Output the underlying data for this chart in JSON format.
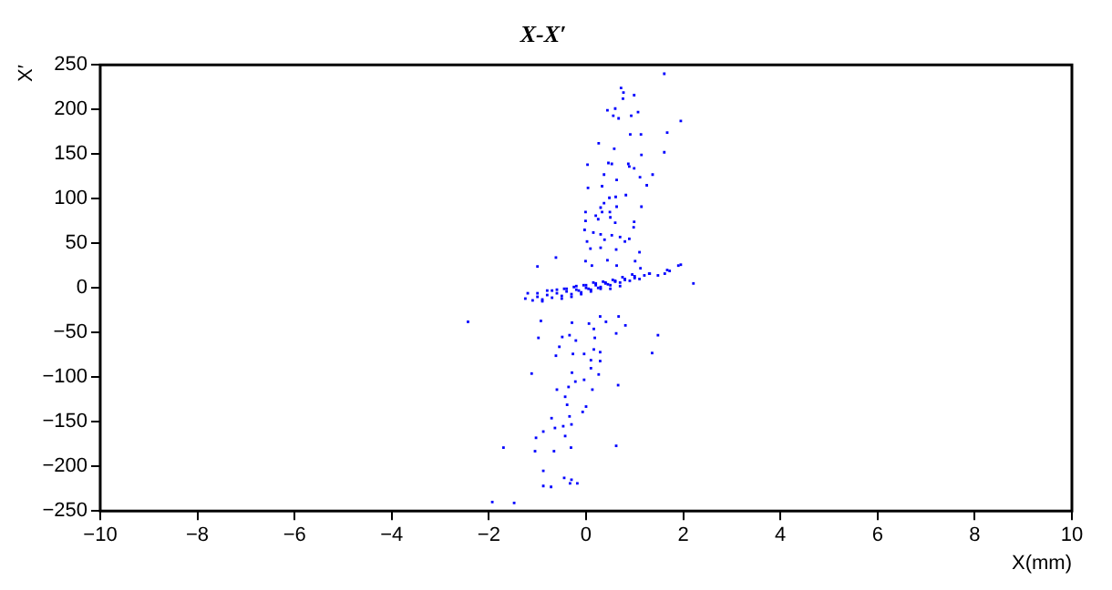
{
  "chart_data": {
    "type": "scatter",
    "title": "X-X′",
    "xlabel": "X(mm)",
    "ylabel": "X′",
    "xlim": [
      -10,
      10
    ],
    "ylim": [
      -250,
      250
    ],
    "xticks": [
      -10,
      -8,
      -6,
      -4,
      -2,
      0,
      2,
      4,
      6,
      8,
      10
    ],
    "yticks": [
      -250,
      -200,
      -150,
      -100,
      -50,
      0,
      50,
      100,
      150,
      200,
      250
    ],
    "grid": false,
    "legend": false,
    "marker": "square",
    "series": [
      {
        "color": "#0000ff",
        "x": [
          1.61,
          0.72,
          0.77,
          0.99,
          0.76,
          0.6,
          0.44,
          0.67,
          0.56,
          1.07,
          0.93,
          1.95,
          1.67,
          0.91,
          1.13,
          0.26,
          0.58,
          1.61,
          1.14,
          0.03,
          0.46,
          0.53,
          0.87,
          0.89,
          0.99,
          0.37,
          1.37,
          1.11,
          0.63,
          0.33,
          1.25,
          0.04,
          0.82,
          0.48,
          0.61,
          0.37,
          0.3,
          0.63,
          1.14,
          -0.01,
          0.33,
          0.49,
          0.2,
          0.25,
          0.5,
          0.6,
          0.99,
          -0.01,
          -0.03,
          0.15,
          0.3,
          0.53,
          0.7,
          0.98,
          0.02,
          0.38,
          0.8,
          0.89,
          0.09,
          0.3,
          0.62,
          1.1,
          -0.62,
          -0.01,
          0.44,
          -1.0,
          0.12,
          0.63,
          1.01,
          1.9,
          1.12,
          1.31,
          1.67,
          2.21,
          1.95,
          1.72,
          1.62,
          1.48,
          -2.43,
          -1.25,
          -1.1,
          -1.0,
          -0.9,
          -0.8,
          -0.7,
          -0.6,
          -0.5,
          -0.4,
          -0.3,
          -0.2,
          -0.1,
          0.0,
          0.1,
          0.2,
          0.3,
          0.4,
          0.5,
          0.6,
          0.7,
          0.8,
          0.9,
          1.0,
          1.1,
          1.2,
          1.3,
          -1.2,
          -1.0,
          -0.8,
          -0.6,
          -0.4,
          -0.2,
          0.0,
          0.2,
          0.4,
          0.6,
          0.8,
          1.0,
          -0.9,
          -0.5,
          -0.3,
          -0.1,
          0.1,
          0.3,
          0.5,
          0.7,
          -0.7,
          -0.45,
          -0.25,
          -0.05,
          0.15,
          0.35,
          0.55,
          0.75,
          0.95,
          -0.15,
          0.05,
          0.25,
          0.45,
          -0.93,
          -0.29,
          0.29,
          0.67,
          0.06,
          0.41,
          0.16,
          0.62,
          0.81,
          -0.34,
          -0.98,
          -0.49,
          -0.21,
          0.18,
          1.48,
          0.16,
          0.29,
          -0.55,
          -0.62,
          -0.27,
          -0.04,
          1.36,
          0.29,
          0.1,
          -1.12,
          -0.29,
          0.26,
          0.1,
          -0.04,
          -0.22,
          0.66,
          -0.6,
          0.13,
          -0.36,
          -0.43,
          -0.39,
          0.0,
          -0.34,
          -0.71,
          -0.07,
          0.62,
          -1.7,
          -1.03,
          -0.88,
          -0.64,
          -0.47,
          -0.3,
          -0.43,
          -0.66,
          -0.31,
          -1.05,
          -0.88,
          -0.3,
          -0.18,
          -0.72,
          -1.93,
          -1.48,
          -0.88,
          -0.45,
          -0.33
        ],
        "values": [
          240,
          224,
          219,
          216,
          212,
          201,
          199,
          190,
          193,
          197,
          193,
          187,
          174,
          172,
          172,
          162,
          156,
          152,
          149,
          138,
          140,
          139,
          139,
          136,
          134,
          127,
          127,
          124,
          121,
          114,
          115,
          112,
          104,
          101,
          102,
          95,
          90,
          91,
          91,
          85,
          85,
          85,
          81,
          77,
          79,
          73,
          74,
          75,
          65,
          62,
          60,
          59,
          57,
          68,
          52,
          54,
          52,
          55,
          44,
          45,
          43,
          40,
          34,
          30,
          31,
          24,
          25,
          25,
          30,
          25,
          22,
          16,
          20,
          5,
          26,
          19,
          16,
          14,
          -38,
          -12,
          -14,
          -10,
          -13,
          -8,
          -11,
          -6,
          -9,
          -4,
          -7,
          -2,
          -5,
          0,
          -2,
          3,
          1,
          5,
          3,
          7,
          6,
          9,
          8,
          11,
          10,
          14,
          16,
          -6,
          -6,
          -3,
          -2,
          -1,
          2,
          3,
          5,
          6,
          8,
          10,
          13,
          -15,
          -12,
          -10,
          -7,
          -4,
          -1,
          -1,
          2,
          -3,
          -1,
          1,
          3,
          6,
          7,
          9,
          12,
          15,
          -3,
          -1,
          0,
          4,
          -37,
          -39,
          -32,
          -32,
          -40,
          -38,
          -46,
          -51,
          -42,
          -53,
          -56,
          -55,
          -59,
          -56,
          -53,
          -69,
          -72,
          -66,
          -76,
          -74,
          -74,
          -73,
          -82,
          -81,
          -96,
          -95,
          -97,
          -90,
          -103,
          -105,
          -109,
          -114,
          -114,
          -111,
          -122,
          -131,
          -133,
          -144,
          -146,
          -139,
          -177,
          -179,
          -168,
          -161,
          -157,
          -155,
          -153,
          -166,
          -183,
          -179,
          -183,
          -205,
          -215,
          -219,
          -223,
          -240,
          -241,
          -222,
          -213,
          -219
        ]
      }
    ]
  }
}
